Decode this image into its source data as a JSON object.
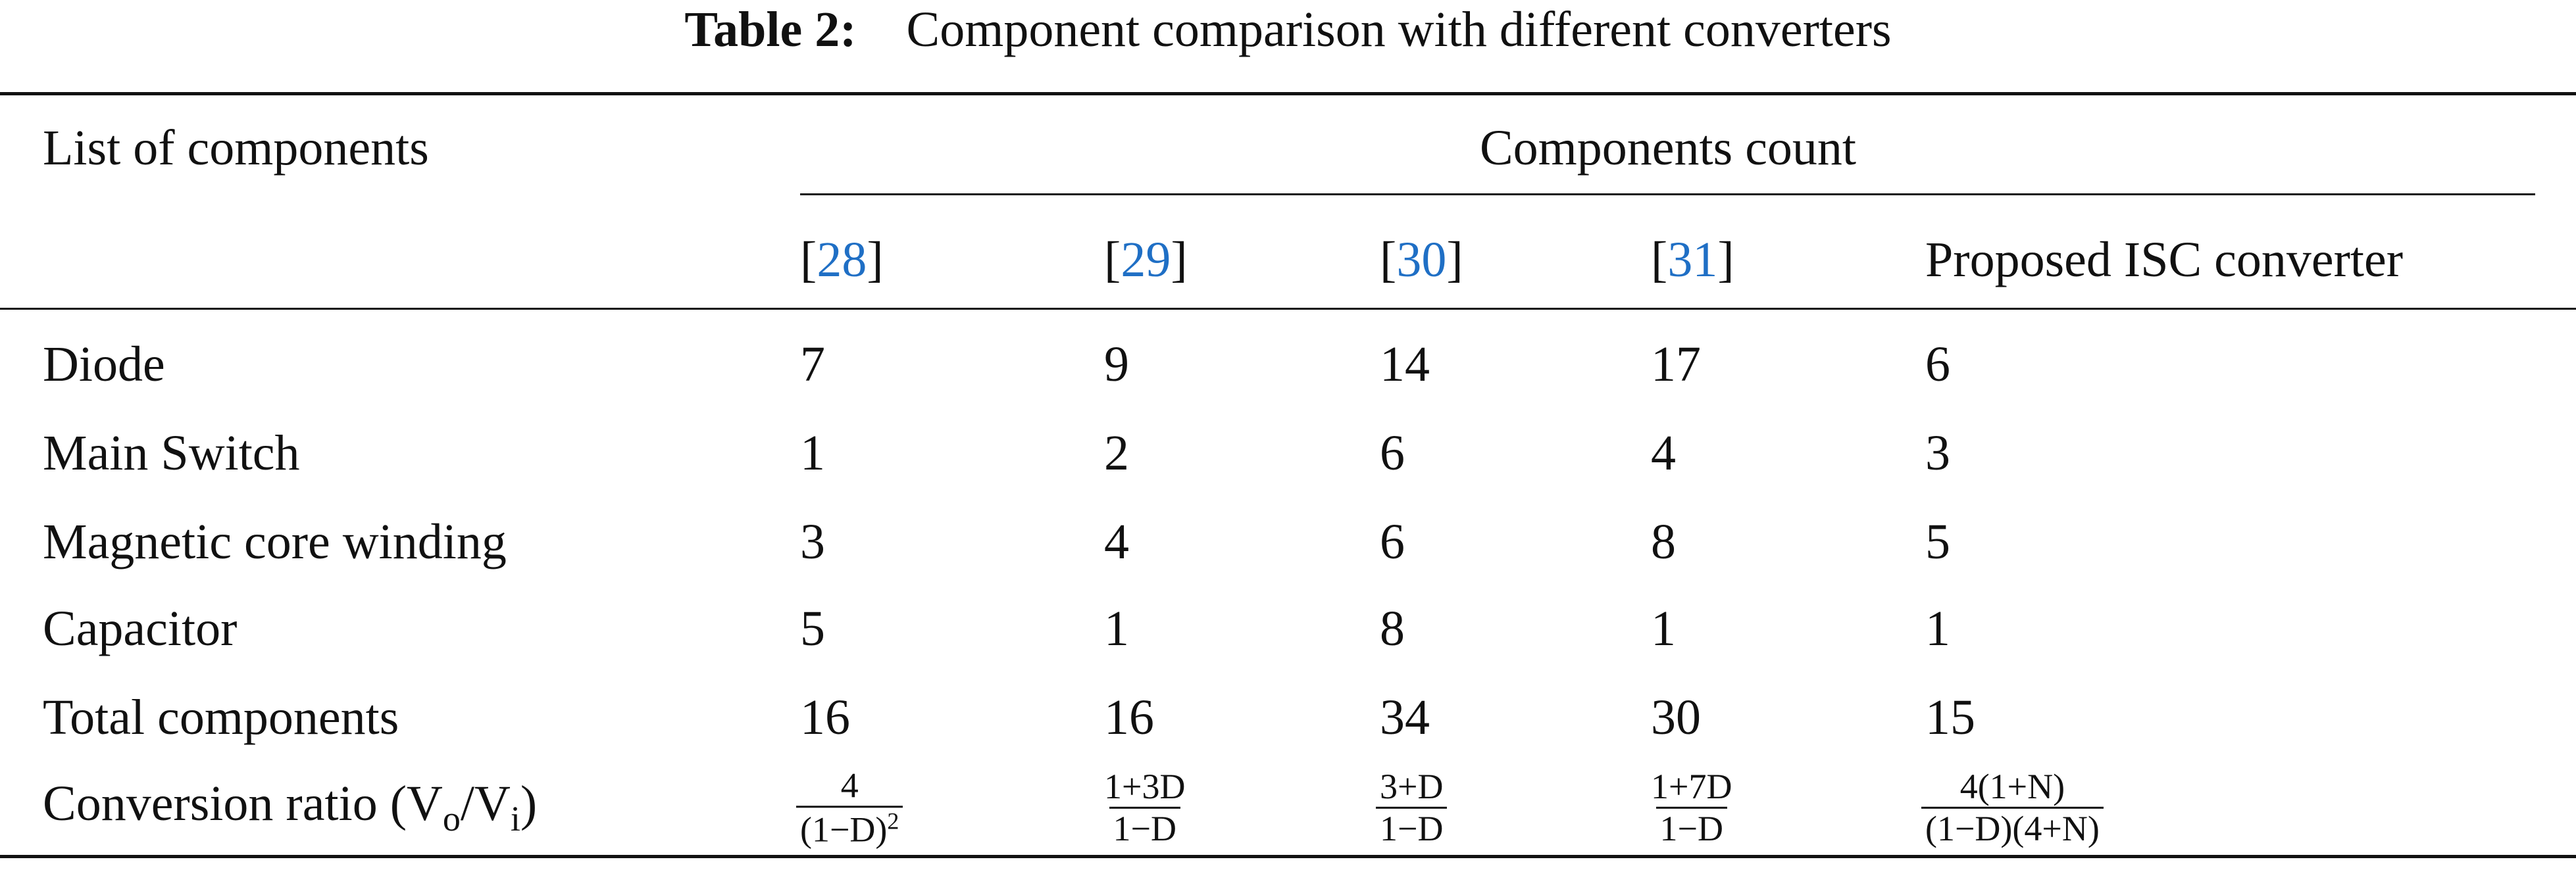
{
  "title": {
    "label": "Table 2:",
    "text": "Component comparison with different converters"
  },
  "table": {
    "row_header": "List of components",
    "group_header": "Components count",
    "columns": [
      {
        "open": "[",
        "ref": "28",
        "close": "]"
      },
      {
        "open": "[",
        "ref": "29",
        "close": "]"
      },
      {
        "open": "[",
        "ref": "30",
        "close": "]"
      },
      {
        "open": "[",
        "ref": "31",
        "close": "]"
      },
      {
        "text": "Proposed ISC converter"
      }
    ],
    "rows": [
      {
        "name": "Diode",
        "cells": [
          "7",
          "9",
          "14",
          "17",
          "6"
        ]
      },
      {
        "name": "Main Switch",
        "cells": [
          "1",
          "2",
          "6",
          "4",
          "3"
        ]
      },
      {
        "name": "Magnetic core winding",
        "cells": [
          "3",
          "4",
          "6",
          "8",
          "5"
        ]
      },
      {
        "name": "Capacitor",
        "cells": [
          "5",
          "1",
          "8",
          "1",
          "1"
        ]
      },
      {
        "name": "Total components",
        "cells": [
          "16",
          "16",
          "34",
          "30",
          "15"
        ]
      }
    ],
    "ratio_row": {
      "name": {
        "text": "Conversion ratio (V",
        "sub1": "o",
        "mid": "/V",
        "sub2": "i",
        "end": ")"
      },
      "cells": [
        {
          "numerator": "4",
          "denominator": "(1−D)",
          "exponent": "2"
        },
        {
          "numerator": "1+3D",
          "denominator": "1−D"
        },
        {
          "numerator": "3+D",
          "denominator": "1−D"
        },
        {
          "numerator": "1+7D",
          "denominator": "1−D"
        },
        {
          "numerator": "4(1+N)",
          "denominator": "(1−D)(4+N)"
        }
      ]
    }
  }
}
